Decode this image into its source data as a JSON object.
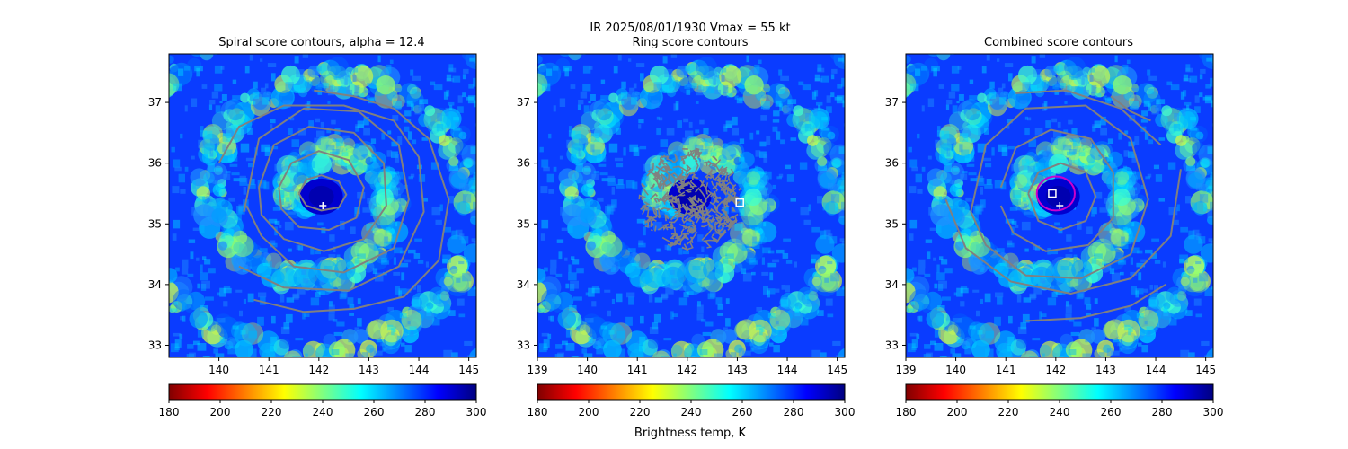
{
  "figure": {
    "suptitle_line1": "IR  2025/08/01/1930    Vmax = 55 kt",
    "colorbar_label": "Brightness temp, K"
  },
  "colormap": {
    "name": "jet_r",
    "vmin": 180,
    "vmax": 300,
    "stops": [
      "#800000",
      "#ff0000",
      "#ff8000",
      "#ffff00",
      "#80ff80",
      "#00ffff",
      "#0080ff",
      "#0000ff",
      "#000080"
    ]
  },
  "chart_data": [
    {
      "type": "heatmap",
      "title": "Spiral score contours, alpha = 12.4",
      "xlim": [
        139.0,
        145.15
      ],
      "ylim": [
        32.8,
        37.8
      ],
      "xticks": [
        140,
        141,
        142,
        143,
        144,
        145
      ],
      "yticks": [
        33,
        34,
        35,
        36,
        37
      ],
      "contour_color": "#808080",
      "contours": [
        [
          [
            141.6,
            35.5
          ],
          [
            141.75,
            35.73
          ],
          [
            142.05,
            35.8
          ],
          [
            142.4,
            35.7
          ],
          [
            142.55,
            35.48
          ],
          [
            142.4,
            35.27
          ],
          [
            142.05,
            35.22
          ],
          [
            141.75,
            35.3
          ],
          [
            141.6,
            35.5
          ]
        ],
        [
          [
            141.2,
            35.6
          ],
          [
            141.45,
            36.0
          ],
          [
            142.0,
            36.2
          ],
          [
            142.6,
            36.05
          ],
          [
            142.9,
            35.6
          ],
          [
            142.75,
            35.1
          ],
          [
            142.2,
            34.9
          ],
          [
            141.6,
            34.95
          ],
          [
            141.25,
            35.25
          ],
          [
            141.2,
            35.6
          ]
        ],
        [
          [
            140.8,
            35.6
          ],
          [
            141.1,
            36.3
          ],
          [
            141.8,
            36.6
          ],
          [
            142.7,
            36.5
          ],
          [
            143.3,
            36.0
          ],
          [
            143.35,
            35.3
          ],
          [
            142.9,
            34.75
          ],
          [
            142.1,
            34.55
          ],
          [
            141.3,
            34.75
          ],
          [
            140.85,
            35.15
          ],
          [
            140.8,
            35.6
          ]
        ],
        [
          [
            140.5,
            35.2
          ],
          [
            140.8,
            36.4
          ],
          [
            141.7,
            36.9
          ],
          [
            142.8,
            36.85
          ],
          [
            143.6,
            36.3
          ],
          [
            143.8,
            35.4
          ],
          [
            143.5,
            34.6
          ],
          [
            142.5,
            34.2
          ],
          [
            141.5,
            34.3
          ],
          [
            140.85,
            34.8
          ],
          [
            140.55,
            35.3
          ]
        ],
        [
          [
            140.0,
            36.0
          ],
          [
            140.4,
            36.6
          ],
          [
            141.3,
            36.95
          ],
          [
            142.5,
            36.95
          ],
          [
            143.5,
            36.7
          ],
          [
            144.0,
            36.1
          ],
          [
            144.1,
            35.2
          ],
          [
            143.6,
            34.3
          ],
          [
            142.6,
            33.9
          ],
          [
            141.3,
            33.95
          ],
          [
            140.4,
            34.3
          ]
        ],
        [
          [
            141.9,
            37.2
          ],
          [
            142.7,
            37.1
          ],
          [
            143.5,
            36.9
          ],
          [
            144.2,
            36.4
          ],
          [
            144.6,
            35.4
          ],
          [
            144.4,
            34.4
          ],
          [
            143.7,
            33.8
          ],
          [
            142.7,
            33.6
          ],
          [
            141.7,
            33.55
          ],
          [
            140.7,
            33.75
          ]
        ]
      ],
      "markers": [
        {
          "type": "plus",
          "lon": 142.08,
          "lat": 35.3,
          "color": "#ffffff"
        }
      ]
    },
    {
      "type": "heatmap",
      "title": "Ring score contours",
      "xlim": [
        139.0,
        145.15
      ],
      "ylim": [
        32.8,
        37.8
      ],
      "xticks": [
        139,
        140,
        141,
        142,
        143,
        144,
        145
      ],
      "yticks": [
        33,
        34,
        35,
        36,
        37
      ],
      "contour_color": "#808080",
      "ring_region": {
        "center": [
          142.05,
          35.4
        ],
        "radius_lon": 1.05,
        "radius_lat": 0.85
      },
      "markers": [
        {
          "type": "square",
          "lon": 143.05,
          "lat": 35.35,
          "color": "#ffffff"
        }
      ]
    },
    {
      "type": "heatmap",
      "title": "Combined score contours",
      "xlim": [
        139.0,
        145.15
      ],
      "ylim": [
        32.8,
        37.8
      ],
      "xticks": [
        139,
        140,
        141,
        142,
        143,
        144,
        145
      ],
      "yticks": [
        33,
        34,
        35,
        36,
        37
      ],
      "contour_color": "#808080",
      "contours": [
        [
          [
            141.45,
            35.5
          ],
          [
            141.65,
            35.85
          ],
          [
            142.1,
            36.0
          ],
          [
            142.6,
            35.85
          ],
          [
            142.8,
            35.45
          ],
          [
            142.6,
            35.05
          ],
          [
            142.1,
            34.9
          ],
          [
            141.65,
            35.05
          ],
          [
            141.45,
            35.5
          ]
        ],
        [
          [
            140.9,
            35.6
          ],
          [
            141.2,
            36.25
          ],
          [
            141.9,
            36.55
          ],
          [
            142.7,
            36.4
          ],
          [
            143.15,
            35.85
          ],
          [
            143.15,
            35.1
          ],
          [
            142.65,
            34.65
          ],
          [
            141.8,
            34.55
          ],
          [
            141.15,
            34.85
          ],
          [
            140.9,
            35.3
          ]
        ],
        [
          [
            140.3,
            35.2
          ],
          [
            140.6,
            36.3
          ],
          [
            141.4,
            36.9
          ],
          [
            142.6,
            36.95
          ],
          [
            143.5,
            36.4
          ],
          [
            143.85,
            35.4
          ],
          [
            143.5,
            34.5
          ],
          [
            142.5,
            34.1
          ],
          [
            141.4,
            34.15
          ],
          [
            140.6,
            34.65
          ],
          [
            140.3,
            35.2
          ]
        ],
        [
          [
            139.8,
            35.4
          ],
          [
            140.2,
            34.6
          ],
          [
            141.1,
            34.05
          ],
          [
            142.3,
            33.85
          ],
          [
            143.5,
            34.1
          ],
          [
            144.3,
            34.8
          ],
          [
            144.5,
            35.9
          ]
        ],
        [
          [
            141.2,
            37.15
          ],
          [
            142.2,
            37.2
          ],
          [
            143.3,
            36.9
          ],
          [
            144.1,
            36.3
          ]
        ],
        [
          [
            143.1,
            37.1
          ],
          [
            143.5,
            36.85
          ],
          [
            143.9,
            36.7
          ]
        ],
        [
          [
            141.4,
            33.4
          ],
          [
            142.5,
            33.45
          ],
          [
            143.5,
            33.65
          ],
          [
            144.2,
            34.0
          ]
        ]
      ],
      "center_ring": {
        "center": [
          142.0,
          35.5
        ],
        "radius_lon": 0.38,
        "radius_lat": 0.28,
        "color": "#cc00cc"
      },
      "markers": [
        {
          "type": "square",
          "lon": 141.93,
          "lat": 35.5,
          "color": "#ffffff"
        },
        {
          "type": "plus",
          "lon": 142.08,
          "lat": 35.3,
          "color": "#ffffff"
        }
      ]
    }
  ],
  "colorbar": {
    "ticks": [
      180,
      200,
      220,
      240,
      260,
      280,
      300
    ]
  }
}
